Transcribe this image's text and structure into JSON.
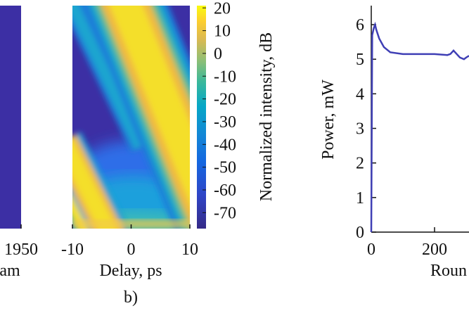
{
  "chart_data": [
    {
      "type": "strip",
      "xticks": [
        1950
      ],
      "xlabel": "am"
    },
    {
      "type": "heatmap",
      "xlabel": "Delay, ps",
      "caption": "b)",
      "xlim": [
        -10,
        10
      ],
      "xticks": [
        -10,
        0,
        10
      ],
      "colorbar": {
        "label": "Normalized intensity, dB",
        "lim": [
          -77,
          21
        ],
        "ticks": [
          20,
          10,
          0,
          -10,
          -20,
          -30,
          -40,
          -50,
          -60,
          -70
        ]
      }
    },
    {
      "type": "line",
      "ylabel": "Power, mW",
      "xlabel": "Roun",
      "xlim": [
        0,
        310
      ],
      "xticks": [
        0,
        200
      ],
      "ylim": [
        0,
        6.55
      ],
      "yticks": [
        0,
        1,
        2,
        3,
        4,
        5,
        6
      ],
      "series": [
        {
          "color": "#3f3fb5",
          "x": [
            0,
            3,
            8,
            12,
            16,
            25,
            40,
            60,
            100,
            150,
            200,
            240,
            250,
            260,
            270,
            280,
            293,
            300,
            309
          ],
          "values": [
            0,
            5.7,
            5.9,
            6.0,
            5.85,
            5.6,
            5.35,
            5.2,
            5.15,
            5.15,
            5.15,
            5.12,
            5.15,
            5.25,
            5.15,
            5.05,
            5.0,
            5.05,
            5.1
          ]
        }
      ]
    }
  ]
}
